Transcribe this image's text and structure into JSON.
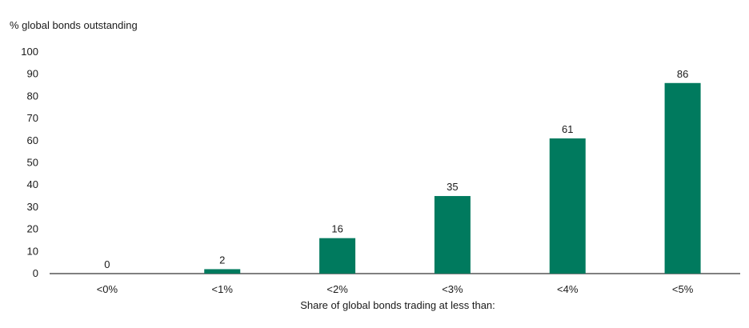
{
  "chart_data": {
    "type": "bar",
    "ylabel": "% global bonds outstanding",
    "xlabel": "Share of global bonds trading at less than:",
    "categories": [
      "<0%",
      "<1%",
      "<2%",
      "<3%",
      "<4%",
      "<5%"
    ],
    "values": [
      0,
      2,
      16,
      35,
      61,
      86
    ],
    "data_labels": [
      "0",
      "2",
      "16",
      "35",
      "61",
      "86"
    ],
    "ylim": [
      0,
      100
    ],
    "yticks": [
      0,
      10,
      20,
      30,
      40,
      50,
      60,
      70,
      80,
      90,
      100
    ],
    "ytick_labels": [
      "0",
      "10",
      "20",
      "30",
      "40",
      "50",
      "60",
      "70",
      "80",
      "90",
      "100"
    ],
    "grid": false,
    "legend": "none",
    "bar_color": "#007a5e"
  }
}
